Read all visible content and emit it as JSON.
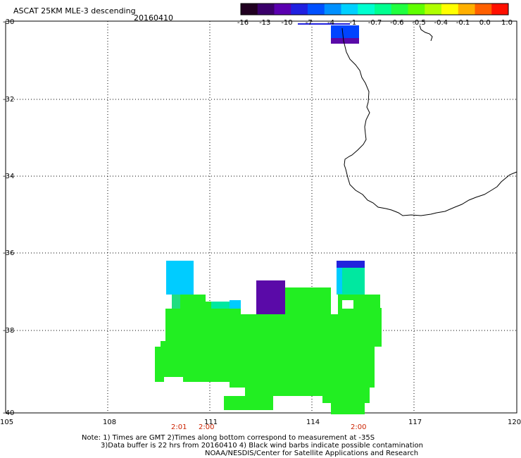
{
  "header": {
    "title": "ASCAT 25KM MLE-3 descending",
    "date": "20160410"
  },
  "colorbar": {
    "colors": [
      "#200020",
      "#3a006a",
      "#5a00b0",
      "#2020e0",
      "#0050ff",
      "#0090ff",
      "#00d0ff",
      "#00ffd0",
      "#00ff90",
      "#20ff40",
      "#60ff00",
      "#b0ff00",
      "#ffff00",
      "#ffb000",
      "#ff6000",
      "#ff1000"
    ],
    "labels": [
      "-16",
      "-13",
      "-10",
      "-7",
      "-4",
      "-1",
      "-0.7",
      "-0.6",
      "-0.5",
      "-0.4",
      "-0.1",
      "0.0",
      "1.0"
    ]
  },
  "axes": {
    "lat_labels": [
      "-30",
      "-32",
      "-34",
      "-36",
      "-38",
      "-40"
    ],
    "lon_labels": [
      "105",
      "108",
      "111",
      "114",
      "117",
      "120"
    ]
  },
  "time_labels": [
    {
      "text": "2:01"
    },
    {
      "text": "2:00"
    },
    {
      "text": "2:00"
    }
  ],
  "footer": {
    "line1": "Note: 1) Times are GMT 2)Times along bottom correspond to measurement at -35S",
    "line2": "3)Data buffer is 22 hrs from 20160410 4) Black wind barbs indicate possible contamination",
    "line3": "NOAA/NESDIS/Center for Satellite Applications and Research"
  },
  "legend_colors": {
    "green": "#22ee22",
    "cyan": "#00ccff",
    "teal": "#00e8a0",
    "purple": "#5a0aa8",
    "blue": "#0044ff",
    "darkblue": "#2222dd"
  }
}
